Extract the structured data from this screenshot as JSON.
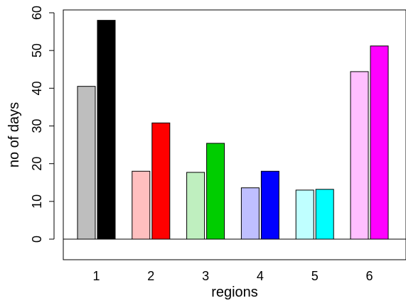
{
  "chart_data": {
    "type": "bar",
    "categories": [
      "1",
      "2",
      "3",
      "4",
      "5",
      "6"
    ],
    "series": [
      {
        "values": [
          40.5,
          18.0,
          17.7,
          13.6,
          13.0,
          44.4
        ],
        "colors": [
          "#bebebe",
          "#ffbfbf",
          "#bfefbf",
          "#bfbfff",
          "#bfffff",
          "#ffbfff"
        ]
      },
      {
        "values": [
          58.0,
          30.8,
          25.4,
          18.0,
          13.2,
          51.2
        ],
        "colors": [
          "#000000",
          "#ff0000",
          "#00cd00",
          "#0000ff",
          "#00ffff",
          "#ff00ff"
        ]
      }
    ],
    "xlabel": "regions",
    "ylabel": "no of days",
    "ylim": [
      0,
      60
    ],
    "yticks": [
      0,
      10,
      20,
      30,
      40,
      50,
      60
    ],
    "grid": false,
    "legend": "none",
    "bar_border_color": "#000000"
  }
}
